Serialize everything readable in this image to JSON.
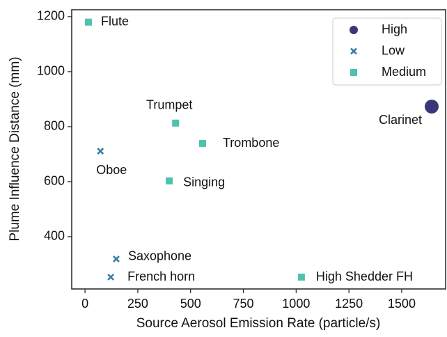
{
  "chart_data": {
    "type": "scatter",
    "x_label": "Source Aerosol Emission Rate (particle/s)",
    "y_label": "Plume Influence Distance (mm)",
    "xlim": [
      -63,
      1708
    ],
    "ylim": [
      210,
      1225
    ],
    "xticks": [
      0,
      250,
      500,
      750,
      1000,
      1250,
      1500
    ],
    "yticks": [
      400,
      600,
      800,
      1000,
      1200
    ],
    "legend": "upper right",
    "series": [
      {
        "name": "High",
        "color": "#3b3677",
        "marker": "circle",
        "x": [
          1642
        ],
        "values": [
          873
        ],
        "labels": [
          "Clarinet"
        ]
      },
      {
        "name": "Low",
        "color": "#3a7ca5",
        "marker": "x",
        "x": [
          73,
          148,
          122
        ],
        "values": [
          711,
          319,
          253
        ],
        "labels": [
          "Oboe",
          "Saxophone",
          "French horn"
        ]
      },
      {
        "name": "Medium",
        "color": "#4dc2ae",
        "marker": "square",
        "x": [
          16,
          429,
          557,
          399,
          1025
        ],
        "values": [
          1180,
          813,
          739,
          603,
          253
        ],
        "labels": [
          "Flute",
          "Trumpet",
          "Trombone",
          "Singing",
          "High Shedder FH"
        ]
      }
    ]
  }
}
